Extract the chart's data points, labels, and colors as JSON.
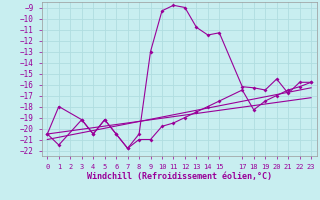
{
  "xlabel": "Windchill (Refroidissement éolien,°C)",
  "background_color": "#c8eef0",
  "grid_color": "#b0dde0",
  "line_color": "#990099",
  "ylim": [
    -22.5,
    -8.5
  ],
  "xlim": [
    -0.5,
    23.5
  ],
  "yticks": [
    -22,
    -21,
    -20,
    -19,
    -18,
    -17,
    -16,
    -15,
    -14,
    -13,
    -12,
    -11,
    -10,
    -9
  ],
  "x_ticks": [
    0,
    1,
    2,
    3,
    4,
    5,
    6,
    7,
    8,
    9,
    10,
    11,
    12,
    13,
    14,
    15,
    17,
    18,
    19,
    20,
    21,
    22,
    23
  ],
  "curve1_x": [
    0,
    1,
    3,
    4,
    5,
    6,
    7,
    8,
    9,
    10,
    11,
    12,
    13,
    14,
    15,
    17,
    18,
    19,
    20,
    21,
    22,
    23
  ],
  "curve1_y": [
    -20.5,
    -18.0,
    -19.2,
    -20.5,
    -19.2,
    -20.5,
    -21.8,
    -20.5,
    -13.0,
    -9.3,
    -8.8,
    -9.0,
    -10.8,
    -11.5,
    -11.3,
    -16.2,
    -16.3,
    -16.5,
    -15.5,
    -16.8,
    -15.8,
    -15.8
  ],
  "curve2_x": [
    0,
    1,
    3,
    4,
    5,
    6,
    7,
    8,
    9,
    10,
    11,
    12,
    13,
    14,
    15,
    17,
    18,
    19,
    20,
    21,
    22,
    23
  ],
  "curve2_y": [
    -20.5,
    -21.5,
    -19.2,
    -20.5,
    -19.2,
    -20.5,
    -21.8,
    -21.0,
    -21.0,
    -19.8,
    -19.5,
    -19.0,
    -18.5,
    -18.0,
    -17.5,
    -16.5,
    -18.3,
    -17.5,
    -17.0,
    -16.5,
    -16.2,
    -15.8
  ],
  "line3_x": [
    0,
    23
  ],
  "line3_y": [
    -21.0,
    -16.3
  ],
  "line4_x": [
    0,
    23
  ],
  "line4_y": [
    -20.5,
    -17.2
  ]
}
